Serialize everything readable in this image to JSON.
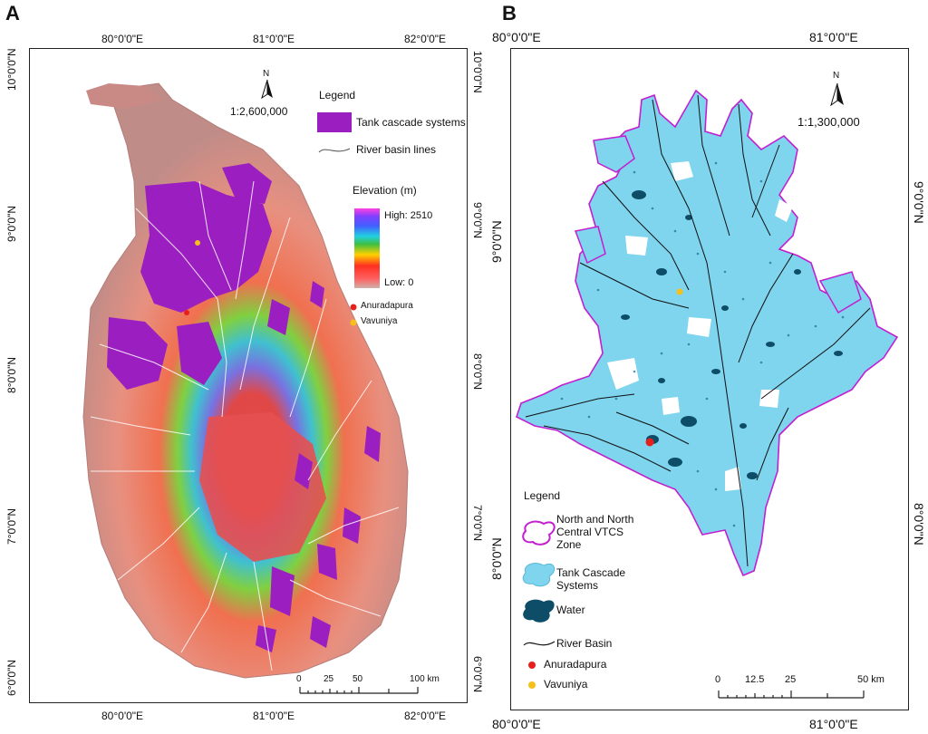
{
  "panelA": {
    "label": "A",
    "top_ticks": [
      "80°0'0\"E",
      "81°0'0\"E",
      "82°0'0\"E"
    ],
    "bottom_ticks": [
      "80°0'0\"E",
      "81°0'0\"E",
      "82°0'0\"E"
    ],
    "left_ticks": [
      "10°0'0\"N",
      "9°0'0\"N",
      "8°0'0\"N",
      "7°0'0\"N",
      "6°0'0\"N"
    ],
    "right_ticks": [
      "10°0'0\"N",
      "9°0'0\"N",
      "8°0'0\"N",
      "7°0'0\"N",
      "6°0'0\"N"
    ],
    "north": "N",
    "scale_ratio": "1:2,600,000",
    "legend_title": "Legend",
    "legend_tank": "Tank cascade systems",
    "legend_river": "River basin lines",
    "elevation_title": "Elevation (m)",
    "elevation_high": "High: 2510",
    "elevation_low": "Low: 0",
    "city1": "Anuradapura",
    "city2": "Vavuniya",
    "scalebar": [
      "0",
      "25",
      "50",
      "100 km"
    ],
    "colors": {
      "tank": "#9b1fc0",
      "land": "#c98a86",
      "city1": "#e8201c",
      "city2": "#f5c01a"
    }
  },
  "panelB": {
    "label": "B",
    "top_ticks": [
      "80°0'0\"E",
      "81°0'0\"E"
    ],
    "bottom_ticks": [
      "80°0'0\"E",
      "81°0'0\"E"
    ],
    "left_ticks": [
      "9°0'0\"N",
      "8°0'0\"N"
    ],
    "right_ticks": [
      "9°0'0\"N",
      "8°0'0\"N"
    ],
    "north": "N",
    "scale_ratio": "1:1,300,000",
    "legend_title": "Legend",
    "legend_zone": "North and North Central VTCS Zone",
    "legend_zone_lines": [
      "North and North",
      "Central VTCS",
      "Zone"
    ],
    "legend_tank_lines": [
      "Tank Cascade",
      "Systems"
    ],
    "legend_water": "Water",
    "legend_river": "River Basin",
    "city1": "Anuradapura",
    "city2": "Vavuniya",
    "scalebar": [
      "0",
      "12.5",
      "25",
      "50 km"
    ],
    "colors": {
      "zone": "#c21fd0",
      "tank": "#7fd4ee",
      "water": "#0e4d68",
      "city1": "#e8201c",
      "city2": "#f5c01a"
    }
  }
}
